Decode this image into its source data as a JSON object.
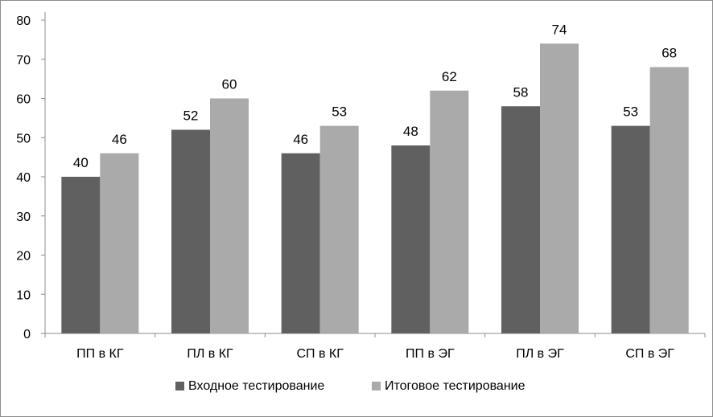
{
  "chart_data": {
    "type": "bar",
    "categories": [
      "ПП в КГ",
      "ПЛ в КГ",
      "СП в КГ",
      "ПП в ЭГ",
      "ПЛ в ЭГ",
      "СП в ЭГ"
    ],
    "series": [
      {
        "name": "Входное тестирование",
        "values": [
          40,
          52,
          46,
          48,
          58,
          53
        ],
        "color": "#5f605f"
      },
      {
        "name": "Итоговое тестирование",
        "values": [
          46,
          60,
          53,
          62,
          74,
          68
        ],
        "color": "#aaaaaa"
      }
    ],
    "title": "",
    "xlabel": "",
    "ylabel": "",
    "ylim": [
      0,
      80
    ],
    "yticks": [
      0,
      10,
      20,
      30,
      40,
      50,
      60,
      70,
      80
    ],
    "grid": false,
    "legend_position": "bottom"
  }
}
